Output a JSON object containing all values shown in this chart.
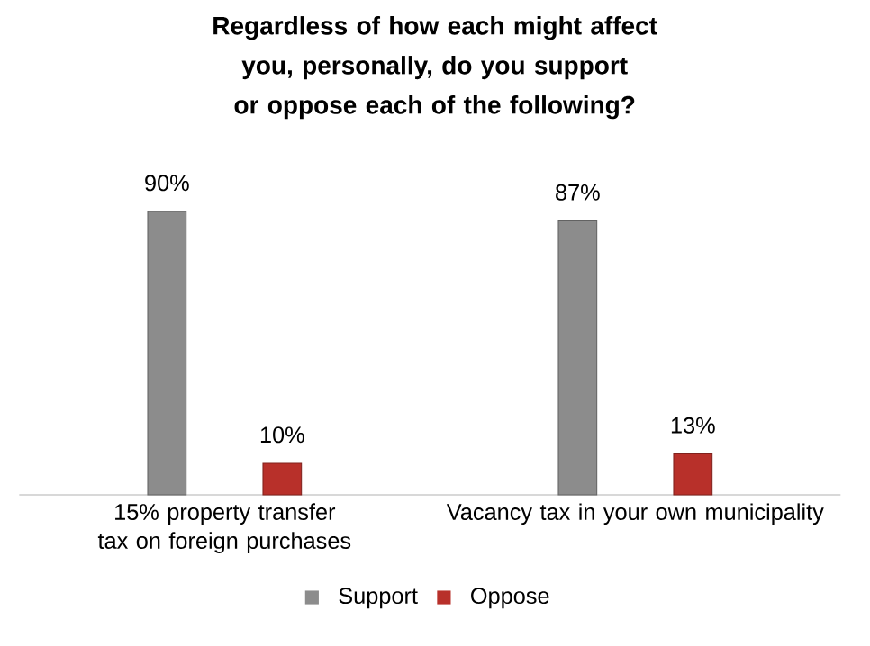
{
  "chart_data": {
    "type": "bar",
    "title": "Regardless of how each might affect you, personally, do you support or oppose each of the following?",
    "categories": [
      "15% property transfer tax on foreign purchases",
      "Vacancy tax in your own municipality"
    ],
    "series": [
      {
        "name": "Support",
        "color": "#8c8c8c",
        "values": [
          90,
          87
        ],
        "value_labels": [
          "90%",
          "87%"
        ]
      },
      {
        "name": "Oppose",
        "color": "#b8302a",
        "values": [
          10,
          13
        ],
        "value_labels": [
          "10%",
          "13%"
        ]
      }
    ],
    "legend": "bottom"
  }
}
